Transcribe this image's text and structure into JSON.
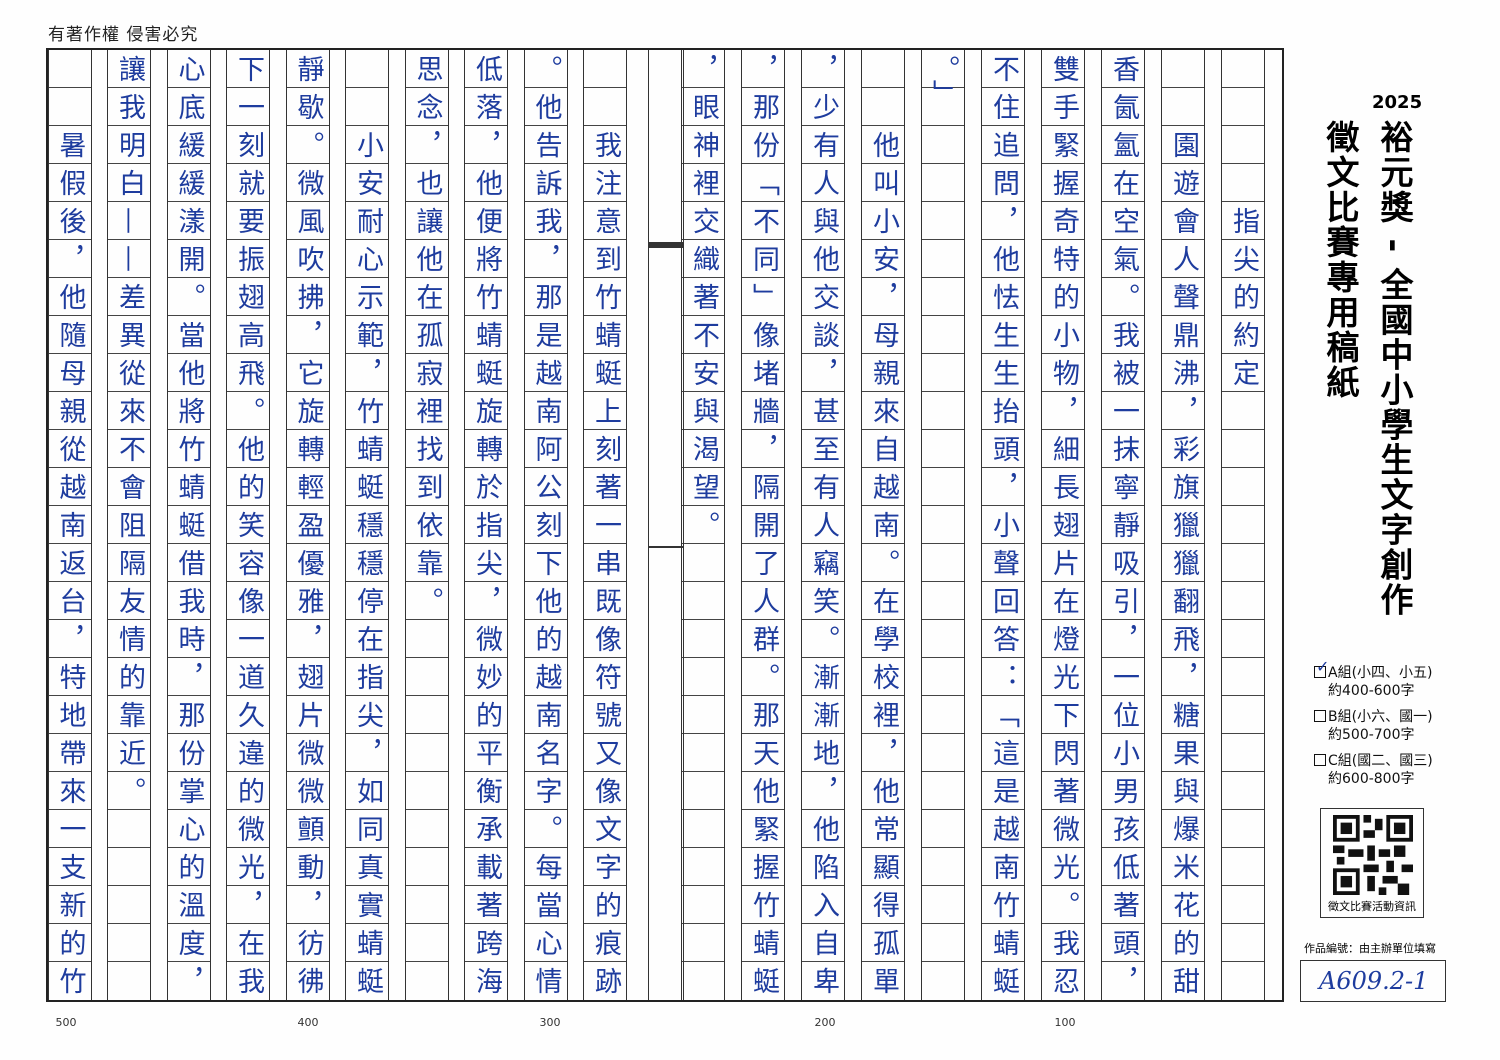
{
  "header": {
    "copyright": "有著作權 侵害必究"
  },
  "essay": {
    "columns": [
      "　　　　指尖的約定",
      "　　園遊會人聲鼎沸，彩旗獵獵翻飛，糖果與爆米花的甜",
      "香氤氳在空氣。我被一抹寧靜吸引，一位小男孩低著頭，",
      "雙手緊握奇特的小物，細長翅片在燈光下閃著微光。我忍",
      "不住追問，他怯生生抬頭，小聲回答：「這是越南竹蜻蜓",
      "。」",
      "　　他叫小安，母親來自越南。在學校裡，他常顯得孤單",
      "，少有人與他交談，甚至有人竊笑。漸漸地，他陷入自卑",
      "，那份「不同」像堵牆，隔開了人群。那天他緊握竹蜻蜓",
      "，眼神裡交織著不安與渴望。",
      "　　我注意到竹蜻蜓上刻著一串既像符號又像文字的痕跡",
      "。他告訴我，那是越南阿公刻下他的越南名字。每當心情",
      "低落，他便將竹蜻蜓旋轉於指尖，微妙的平衡承載著跨海",
      "思念，也讓他在孤寂裡找到依靠。",
      "　　小安耐心示範，竹蜻蜓穩穩停在指尖，如同真實蜻蜓",
      "靜歇。微風吹拂，它旋轉輕盈優雅，翅片微微顫動，彷彿",
      "下一刻就要振翅高飛。他的笑容像一道久違的微光，在我",
      "心底緩緩漾開。當他將竹蜻蜓借我時，那份掌心的溫度，",
      "讓我明白——差異從來不會阻隔友情的靠近。",
      "　　暑假後，他隨母親從越南返台，特地帶來一支新的竹"
    ],
    "char_counts": [
      "100",
      "200",
      "300",
      "400",
      "500"
    ]
  },
  "side": {
    "year": "2025",
    "title_main": "裕元獎 - 全國中小學生文字創作",
    "title_sub": "徵文比賽專用稿紙",
    "groups": [
      {
        "label": "A組(小四、小五)",
        "range": "約400-600字",
        "checked": true
      },
      {
        "label": "B組(小六、國一)",
        "range": "約500-700字",
        "checked": false
      },
      {
        "label": "C組(國二、國三)",
        "range": "約600-800字",
        "checked": false
      }
    ],
    "qr_label": "徵文比賽活動資訊",
    "work_number_label": "作品編號：由主辦單位填寫",
    "work_number": "A609.2-1"
  },
  "colors": {
    "ink": "#1e3c9e",
    "grid": "#333333"
  }
}
